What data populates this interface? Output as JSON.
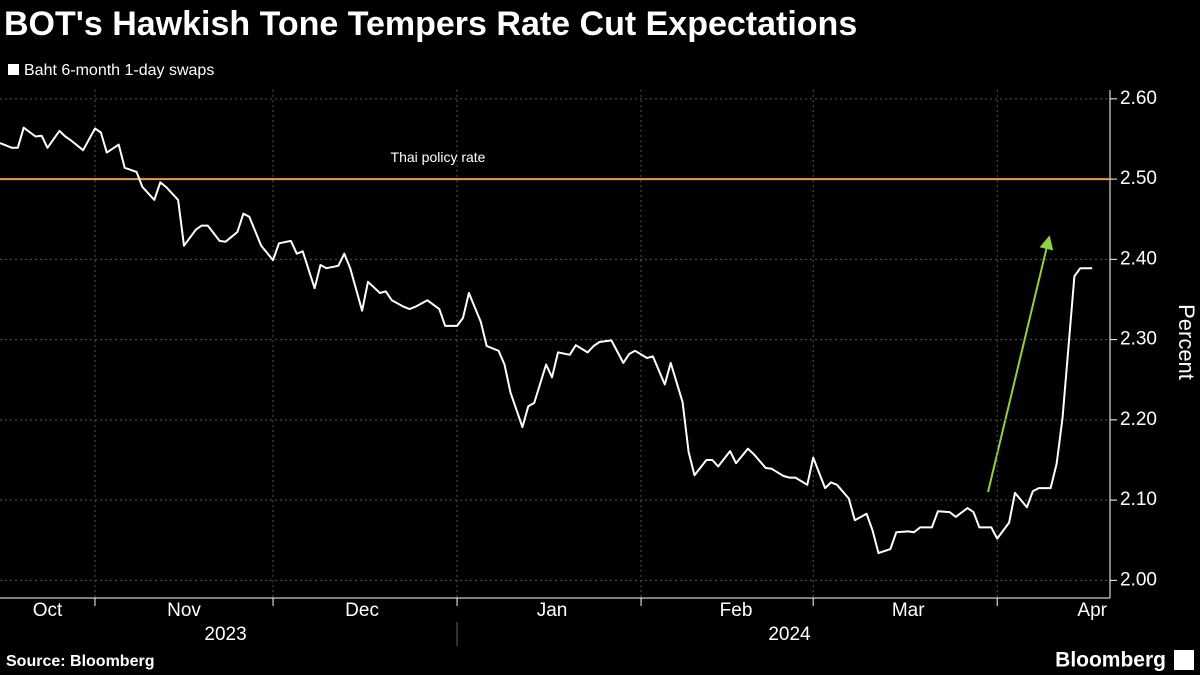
{
  "chart_data": {
    "type": "line",
    "title": "BOT's Hawkish Tone Tempers Rate Cut Expectations",
    "y_axis_label": "Percent",
    "source": "Source: Bloomberg",
    "brand": "Bloomberg",
    "series": [
      {
        "name": "Baht 6-month 1-day swaps",
        "color": "#ffffff",
        "x": [
          15,
          17,
          18,
          19,
          21,
          22,
          23,
          25,
          26,
          27,
          29,
          31,
          32,
          33,
          35,
          36,
          38,
          39,
          41,
          42,
          43,
          45,
          46,
          48,
          49,
          50,
          52,
          53,
          55,
          56,
          57,
          59,
          61,
          62,
          64,
          65,
          66,
          68,
          69,
          70,
          72,
          73,
          74,
          76,
          77,
          79,
          80,
          81,
          83,
          84,
          85,
          87,
          89,
          90,
          92,
          93,
          94,
          96,
          97,
          99,
          100,
          101,
          103,
          104,
          105,
          107,
          108,
          109,
          111,
          112,
          114,
          115,
          116,
          118,
          120,
          121,
          122,
          124,
          125,
          127,
          128,
          130,
          131,
          132,
          134,
          135,
          136,
          138,
          139,
          141,
          142,
          144,
          145,
          147,
          148,
          149,
          151,
          152,
          154,
          155,
          156,
          158,
          159,
          161,
          162,
          163,
          165,
          166,
          168,
          169,
          170,
          172,
          173,
          175,
          176,
          178,
          179,
          180,
          182,
          183,
          185,
          186,
          188,
          189,
          190,
          192,
          193,
          194,
          196,
          197,
          199
        ],
        "values": [
          2.545,
          2.539,
          2.539,
          2.564,
          2.553,
          2.554,
          2.539,
          2.56,
          2.553,
          2.548,
          2.536,
          2.563,
          2.558,
          2.533,
          2.543,
          2.514,
          2.509,
          2.49,
          2.474,
          2.496,
          2.49,
          2.474,
          2.417,
          2.437,
          2.442,
          2.442,
          2.423,
          2.422,
          2.434,
          2.457,
          2.453,
          2.417,
          2.399,
          2.42,
          2.423,
          2.407,
          2.41,
          2.364,
          2.393,
          2.389,
          2.392,
          2.407,
          2.389,
          2.336,
          2.372,
          2.358,
          2.36,
          2.349,
          2.341,
          2.338,
          2.341,
          2.349,
          2.338,
          2.317,
          2.317,
          2.327,
          2.358,
          2.322,
          2.292,
          2.286,
          2.269,
          2.234,
          2.191,
          2.217,
          2.221,
          2.269,
          2.253,
          2.284,
          2.281,
          2.293,
          2.284,
          2.292,
          2.297,
          2.299,
          2.271,
          2.282,
          2.286,
          2.277,
          2.279,
          2.244,
          2.271,
          2.222,
          2.16,
          2.131,
          2.15,
          2.15,
          2.142,
          2.161,
          2.146,
          2.164,
          2.157,
          2.14,
          2.139,
          2.13,
          2.128,
          2.128,
          2.119,
          2.153,
          2.115,
          2.122,
          2.119,
          2.102,
          2.075,
          2.083,
          2.062,
          2.034,
          2.039,
          2.06,
          2.061,
          2.06,
          2.066,
          2.066,
          2.086,
          2.085,
          2.079,
          2.09,
          2.085,
          2.066,
          2.066,
          2.052,
          2.072,
          2.109,
          2.091,
          2.111,
          2.115,
          2.115,
          2.145,
          2.202,
          2.379,
          2.389,
          2.389
        ]
      }
    ],
    "reference_line": {
      "label": "Thai policy rate",
      "value": 2.5,
      "color": "#f0983e"
    },
    "xlim": [
      15,
      202
    ],
    "xticks": [
      {
        "value": 23,
        "label": "Oct"
      },
      {
        "value": 46,
        "label": "Nov"
      },
      {
        "value": 76,
        "label": "Dec"
      },
      {
        "value": 108,
        "label": "Jan"
      },
      {
        "value": 139,
        "label": "Feb"
      },
      {
        "value": 168,
        "label": "Mar"
      },
      {
        "value": 199,
        "label": "Apr"
      }
    ],
    "x_grid": [
      31,
      61,
      92,
      123,
      152,
      183
    ],
    "year_labels": [
      {
        "value": 53,
        "label": "2023"
      },
      {
        "value": 148,
        "label": "2024"
      }
    ],
    "ylim": [
      1.978,
      2.611
    ],
    "yticks": [
      {
        "value": 2.0,
        "label": "2.00"
      },
      {
        "value": 2.1,
        "label": "2.10"
      },
      {
        "value": 2.2,
        "label": "2.20"
      },
      {
        "value": 2.3,
        "label": "2.30"
      },
      {
        "value": 2.4,
        "label": "2.40"
      },
      {
        "value": 2.5,
        "label": "2.50"
      },
      {
        "value": 2.6,
        "label": "2.60"
      }
    ],
    "grid": true
  }
}
